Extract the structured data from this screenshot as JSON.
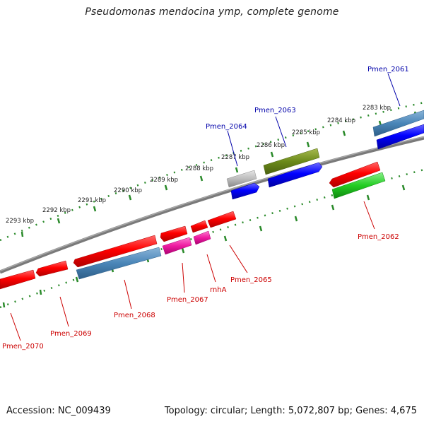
{
  "title": "Pseudomonas mendocina ymp, complete genome",
  "footer": {
    "accession": "Accession: NC_009439",
    "topology": "Topology: circular; Length: 5,072,807 bp; Genes: 4,675"
  },
  "colors": {
    "backbone": "#7a7a7a",
    "scale_ticks": "#2a8a2a",
    "label_known": "#0000aa",
    "label_unknown": "#cc0000"
  },
  "scale_labels": [
    "2293 kbp",
    "2292 kbp",
    "2291 kbp",
    "2290 kbp",
    "2289 kbp",
    "2288 kbp",
    "2287 kbp",
    "2286 kbp",
    "2285 kbp",
    "2284 kbp",
    "2283 kbp"
  ],
  "gene_labels": [
    {
      "text": "Pmen_2061",
      "color": "blue"
    },
    {
      "text": "Pmen_2063",
      "color": "blue"
    },
    {
      "text": "Pmen_2064",
      "color": "blue"
    },
    {
      "text": "Pmen_2062",
      "color": "red"
    },
    {
      "text": "Pmen_2065",
      "color": "red"
    },
    {
      "text": "rnhA",
      "color": "red"
    },
    {
      "text": "Pmen_2067",
      "color": "red"
    },
    {
      "text": "Pmen_2068",
      "color": "red"
    },
    {
      "text": "Pmen_2069",
      "color": "red"
    },
    {
      "text": "Pmen_2070",
      "color": "red"
    }
  ]
}
